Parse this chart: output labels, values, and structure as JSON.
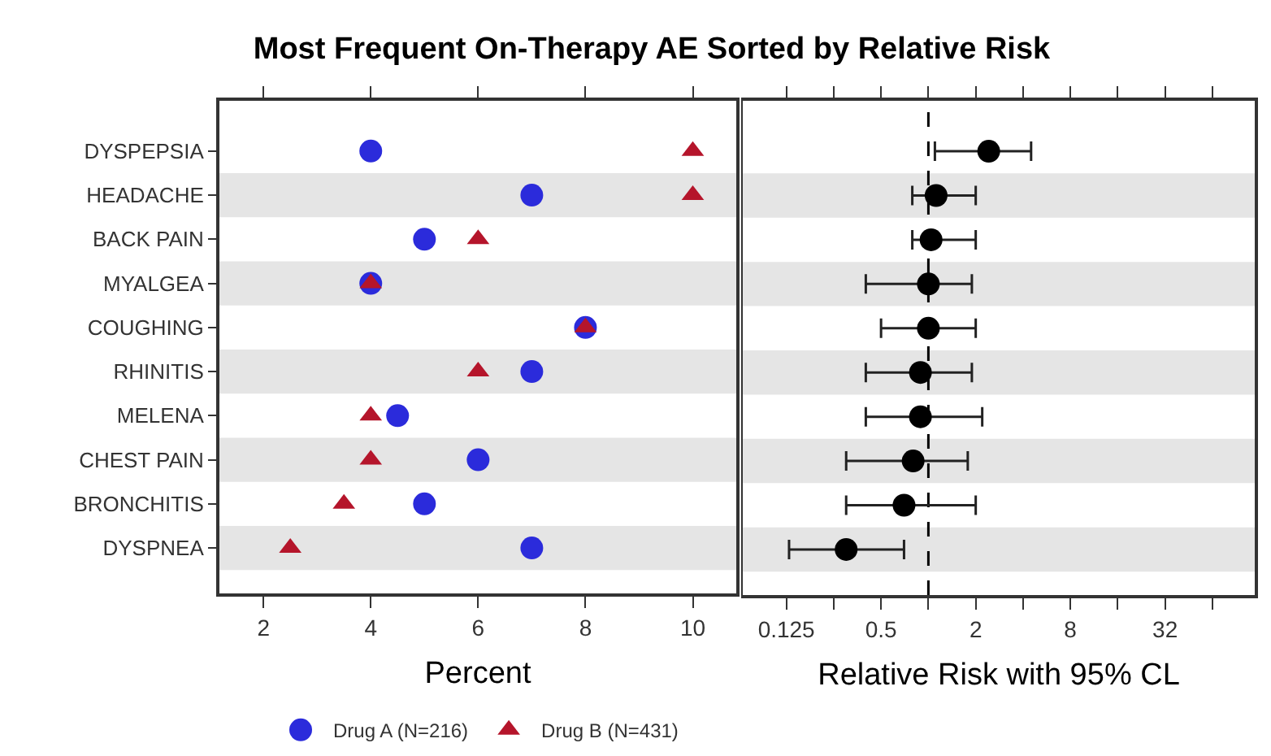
{
  "chart_data": [
    {
      "type": "scatter",
      "title": "Most Frequent On-Therapy AE Sorted by Relative Risk",
      "xlabel": "Percent",
      "orientation": "horizontal",
      "categories": [
        "DYSPEPSIA",
        "HEADACHE",
        "BACK PAIN",
        "MYALGEA",
        "COUGHING",
        "RHINITIS",
        "MELENA",
        "CHEST PAIN",
        "BRONCHITIS",
        "DYSPNEA"
      ],
      "series": [
        {
          "name": "Drug A (N=216)",
          "color": "#2b2bdb",
          "marker": "circle",
          "values": [
            4,
            7,
            5,
            4,
            8,
            7,
            4.5,
            6,
            5,
            7
          ]
        },
        {
          "name": "Drug B (N=431)",
          "color": "#b5152b",
          "marker": "triangle",
          "values": [
            10,
            10,
            6,
            4,
            8,
            6,
            4,
            4,
            3.5,
            2.5
          ]
        }
      ],
      "xlim": [
        1.18,
        10.81
      ],
      "xticks": [
        2,
        4,
        6,
        8,
        10
      ],
      "bands": [
        {
          "axis": "y",
          "from": "HEADACHE",
          "to": "HEADACHE",
          "color": "#e5e5e5"
        },
        {
          "axis": "y",
          "from": "MYALGEA",
          "to": "MYALGEA",
          "color": "#e5e5e5"
        },
        {
          "axis": "y",
          "from": "RHINITIS",
          "to": "RHINITIS",
          "color": "#e5e5e5"
        },
        {
          "axis": "y",
          "from": "CHEST PAIN",
          "to": "CHEST PAIN",
          "color": "#e5e5e5"
        },
        {
          "axis": "y",
          "from": "DYSPNEA",
          "to": "DYSPNEA",
          "color": "#e5e5e5"
        }
      ],
      "legend": "bottom",
      "grid": false
    },
    {
      "type": "scatter",
      "xlabel": "Relative Risk with 95% CL",
      "orientation": "horizontal",
      "log": "x",
      "tick_labels": "x",
      "categories": [
        "DYSPEPSIA",
        "HEADACHE",
        "BACK PAIN",
        "MYALGEA",
        "COUGHING",
        "RHINITIS",
        "MELENA",
        "CHEST PAIN",
        "BRONCHITIS",
        "DYSPNEA"
      ],
      "series": [
        {
          "color": "#000000",
          "marker": "circle",
          "values": [
            2.42,
            1.12,
            1.04,
            1,
            1,
            0.89,
            0.89,
            0.8,
            0.7,
            0.3
          ],
          "errors": [
            [
              1.1,
              4.5
            ],
            [
              0.79,
              2
            ],
            [
              0.79,
              2
            ],
            [
              0.4,
              1.89
            ],
            [
              0.5,
              2
            ],
            [
              0.4,
              1.89
            ],
            [
              0.4,
              2.2
            ],
            [
              0.3,
              1.78
            ],
            [
              0.3,
              2
            ],
            [
              0.13,
              0.7
            ]
          ]
        }
      ],
      "xlim": [
        0.066,
        119
      ],
      "xticks": [
        0.125,
        {
          "value": 0.25,
          "label": null
        },
        0.5,
        {
          "value": 1,
          "label": null
        },
        2,
        {
          "value": 4,
          "label": null
        },
        8,
        {
          "value": 16,
          "label": null
        },
        32,
        {
          "value": 64,
          "label": null
        }
      ],
      "ref_lines": [
        {
          "axis": "x",
          "value": 1,
          "line_style": "dashed",
          "color": "#000000"
        }
      ],
      "bands": [
        {
          "axis": "y",
          "from": "HEADACHE",
          "to": "HEADACHE",
          "color": "#e5e5e5"
        },
        {
          "axis": "y",
          "from": "MYALGEA",
          "to": "MYALGEA",
          "color": "#e5e5e5"
        },
        {
          "axis": "y",
          "from": "RHINITIS",
          "to": "RHINITIS",
          "color": "#e5e5e5"
        },
        {
          "axis": "y",
          "from": "CHEST PAIN",
          "to": "CHEST PAIN",
          "color": "#e5e5e5"
        },
        {
          "axis": "y",
          "from": "DYSPNEA",
          "to": "DYSPNEA",
          "color": "#e5e5e5"
        }
      ],
      "legend": false,
      "grid": false
    }
  ]
}
